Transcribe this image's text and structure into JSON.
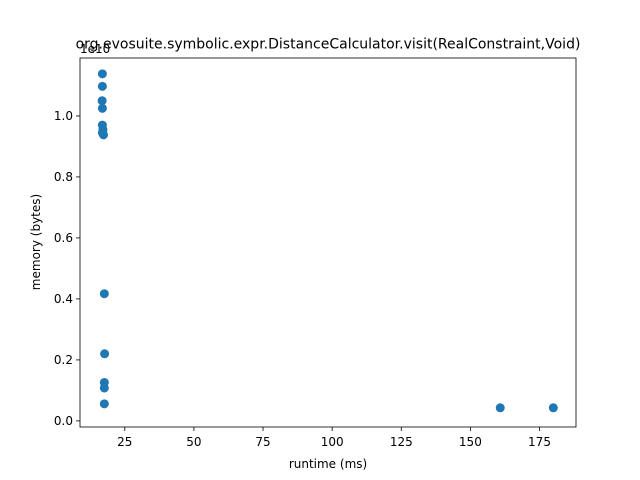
{
  "chart_data": {
    "type": "scatter",
    "title": "org.evosuite.symbolic.expr.DistanceCalculator.visit(RealConstraint,Void)",
    "xlabel": "runtime (ms)",
    "ylabel": "memory (bytes)",
    "y_offset_label": "1e10",
    "xlim": [
      8.8,
      188.2
    ],
    "ylim": [
      -0.02,
      1.19
    ],
    "x_ticks": [
      25,
      50,
      75,
      100,
      125,
      150,
      175
    ],
    "y_ticks": [
      0.0,
      0.2,
      0.4,
      0.6,
      0.8,
      1.0
    ],
    "x_tick_labels": [
      "25",
      "50",
      "75",
      "100",
      "125",
      "150",
      "175"
    ],
    "y_tick_labels": [
      "0.0",
      "0.2",
      "0.4",
      "0.6",
      "0.8",
      "1.0"
    ],
    "grid": false,
    "legend": "none",
    "marker_color": "#1f77b4",
    "series": [
      {
        "points": [
          {
            "x": 16.9,
            "y": 1.138
          },
          {
            "x": 16.9,
            "y": 1.097
          },
          {
            "x": 16.8,
            "y": 1.05
          },
          {
            "x": 16.9,
            "y": 1.025
          },
          {
            "x": 16.9,
            "y": 0.97
          },
          {
            "x": 17.1,
            "y": 0.955
          },
          {
            "x": 16.9,
            "y": 0.945
          },
          {
            "x": 17.3,
            "y": 0.938
          },
          {
            "x": 17.6,
            "y": 0.417
          },
          {
            "x": 17.7,
            "y": 0.22
          },
          {
            "x": 17.6,
            "y": 0.126
          },
          {
            "x": 17.6,
            "y": 0.108
          },
          {
            "x": 17.6,
            "y": 0.056
          },
          {
            "x": 160.8,
            "y": 0.043
          },
          {
            "x": 180.0,
            "y": 0.043
          }
        ]
      }
    ]
  }
}
